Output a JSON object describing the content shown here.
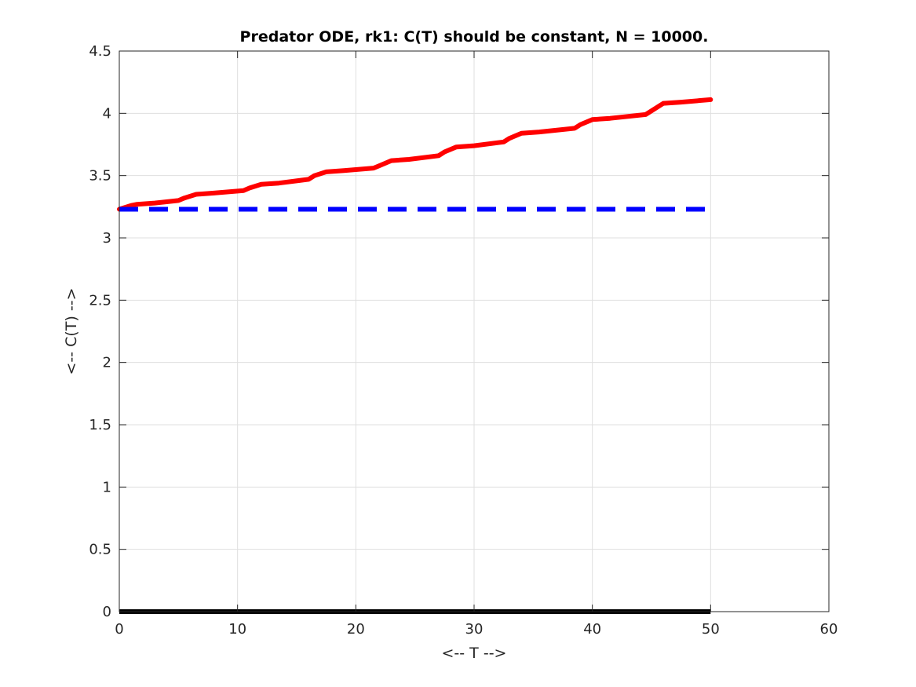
{
  "chart_data": {
    "type": "line",
    "title": "Predator ODE, rk1: C(T) should be constant, N = 10000.",
    "xlabel": "<-- T -->",
    "ylabel": "<-- C(T) -->",
    "xlim": [
      0,
      60
    ],
    "ylim": [
      0,
      4.5
    ],
    "xticks": [
      0,
      10,
      20,
      30,
      40,
      50,
      60
    ],
    "yticks": [
      0,
      0.5,
      1,
      1.5,
      2,
      2.5,
      3,
      3.5,
      4,
      4.5
    ],
    "xtick_labels": [
      "0",
      "10",
      "20",
      "30",
      "40",
      "50",
      "60"
    ],
    "ytick_labels": [
      "0",
      "0.5",
      "1",
      "1.5",
      "2",
      "2.5",
      "3",
      "3.5",
      "4",
      "4.5"
    ],
    "grid": true,
    "series": [
      {
        "color": "#ff0000",
        "style": "solid",
        "x": [
          0,
          1,
          1.5,
          3,
          5,
          5.5,
          6.5,
          8,
          10.5,
          11,
          12,
          13.5,
          16,
          16.5,
          17.5,
          19,
          21.5,
          22,
          23,
          24.5,
          27,
          27.5,
          28.5,
          30,
          32.5,
          33,
          34,
          35.5,
          38.5,
          39,
          40,
          41.5,
          44.5,
          45,
          46,
          47.5,
          50
        ],
        "y": [
          3.23,
          3.26,
          3.27,
          3.28,
          3.3,
          3.32,
          3.35,
          3.36,
          3.38,
          3.4,
          3.43,
          3.44,
          3.47,
          3.5,
          3.53,
          3.54,
          3.56,
          3.58,
          3.62,
          3.63,
          3.66,
          3.69,
          3.73,
          3.74,
          3.77,
          3.8,
          3.84,
          3.85,
          3.88,
          3.91,
          3.95,
          3.96,
          3.99,
          4.02,
          4.08,
          4.09,
          4.11
        ]
      },
      {
        "color": "#0000ff",
        "style": "dashed",
        "x": [
          0,
          50
        ],
        "y": [
          3.23,
          3.23
        ]
      },
      {
        "color": "#000000",
        "style": "solid",
        "x": [
          0,
          50
        ],
        "y": [
          0,
          0
        ]
      }
    ]
  }
}
